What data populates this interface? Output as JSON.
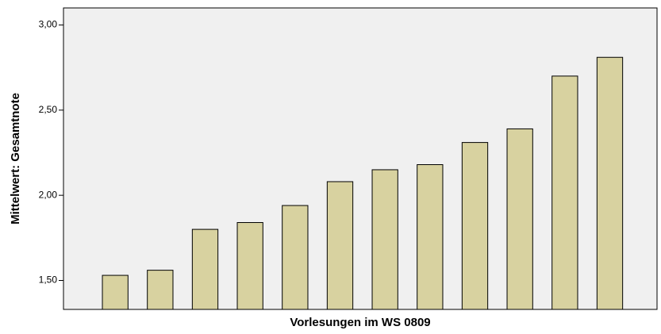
{
  "chart_data": {
    "type": "bar",
    "x_label": "Vorlesungen im WS 0809",
    "y_label": "Mittelwert: Gesamtnote",
    "categories": [
      null,
      null,
      null,
      null,
      null,
      null,
      null,
      null,
      null,
      null,
      null,
      null
    ],
    "values": [
      1.53,
      1.56,
      1.8,
      1.84,
      1.94,
      2.08,
      2.15,
      2.18,
      2.31,
      2.39,
      2.7,
      2.81
    ],
    "color": "#d8d2a0",
    "ylim": [
      1.33,
      3.1
    ],
    "yticks": [
      {
        "value": 1.5,
        "label": "1,50"
      },
      {
        "value": 2.0,
        "label": "2,00"
      },
      {
        "value": 2.5,
        "label": "2,50"
      },
      {
        "value": 3.0,
        "label": "3,00"
      }
    ],
    "grid": false
  }
}
